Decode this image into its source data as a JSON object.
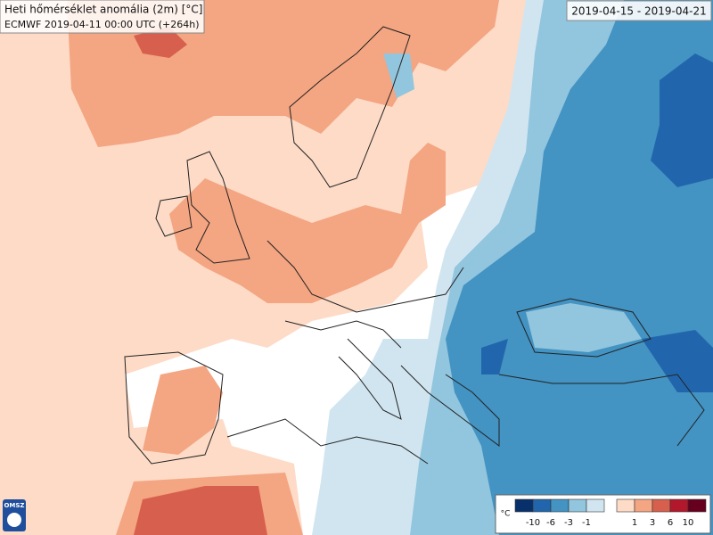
{
  "header": {
    "title": "Heti hőmérséklet anomália (2m) [°C]",
    "subtitle": "ECMWF 2019-04-11 00:00 UTC (+264h)"
  },
  "period": "2019-04-15 - 2019-04-21",
  "legend": {
    "unit": "°C",
    "colors": [
      "#08306b",
      "#2166ac",
      "#4393c3",
      "#92c5de",
      "#d1e5f0",
      "#fddbc7",
      "#f4a582",
      "#d6604d",
      "#b2182b",
      "#67001f"
    ],
    "labels": [
      -10,
      -6,
      -3,
      -1,
      1,
      3,
      6,
      10
    ]
  },
  "logo": "OMSZ"
}
